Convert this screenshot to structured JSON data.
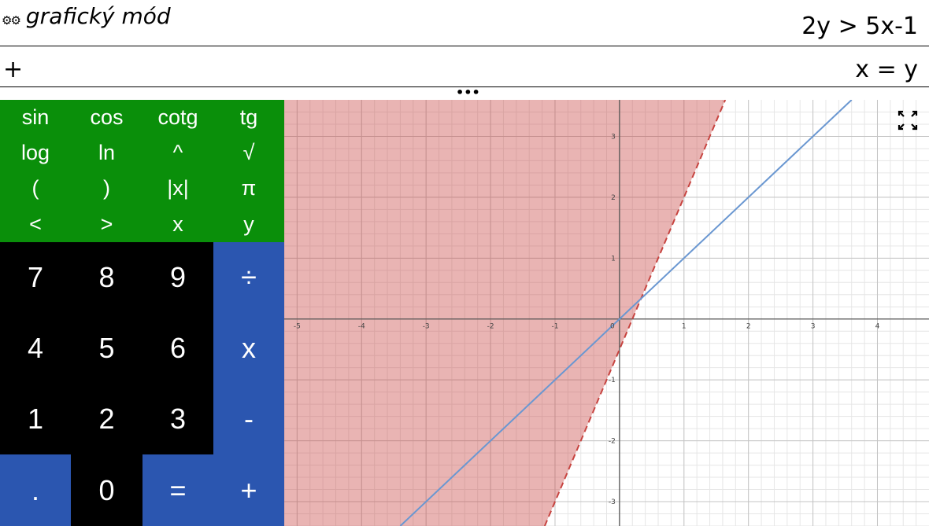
{
  "header": {
    "gear_glyph": "⚙⚙",
    "mode_label": "grafický mód",
    "expression": "2y > 5x-1"
  },
  "input_row": {
    "add_label": "+",
    "expression": "x = y"
  },
  "handle": {
    "label": "•••"
  },
  "keypad": {
    "function_keys": [
      [
        "sin",
        "cos",
        "cotg",
        "tg"
      ],
      [
        "log",
        "ln",
        "^",
        "√"
      ],
      [
        "(",
        ")",
        "|x|",
        "π"
      ],
      [
        "<",
        ">",
        "x",
        "y"
      ]
    ],
    "number_keys": [
      [
        "7",
        "8",
        "9",
        "÷"
      ],
      [
        "4",
        "5",
        "6",
        "x"
      ],
      [
        "1",
        "2",
        "3",
        "-"
      ],
      [
        ".",
        "0",
        "=",
        "+"
      ]
    ],
    "number_key_colors": [
      [
        "black",
        "black",
        "black",
        "blue"
      ],
      [
        "black",
        "black",
        "black",
        "blue"
      ],
      [
        "black",
        "black",
        "black",
        "blue"
      ],
      [
        "blue",
        "black",
        "blue",
        "blue"
      ]
    ]
  },
  "graph": {
    "fullscreen_icon": "fullscreen-icon",
    "x_ticks": [
      "-5",
      "-4",
      "-3",
      "-2",
      "-1",
      "0",
      "1",
      "2",
      "3",
      "4"
    ],
    "y_ticks": [
      "3",
      "2",
      "1",
      "-1",
      "-2",
      "-3"
    ],
    "x_range": [
      -5.2,
      4.8
    ],
    "y_range": [
      -3.4,
      3.6
    ],
    "inequality": {
      "label": "2y > 5x-1",
      "slope": 2.5,
      "intercept": -0.5,
      "color": "#c74440",
      "fill_opacity": 0.4,
      "boundary": "dashed"
    },
    "line": {
      "label": "x = y",
      "slope": 1,
      "intercept": 0,
      "color": "#6a97d1"
    }
  }
}
